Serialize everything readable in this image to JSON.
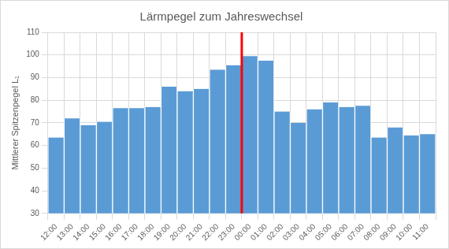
{
  "chart_data": {
    "type": "bar",
    "title": "Lärmpegel zum Jahreswechsel",
    "y_label": "Mittlerer Spitzenpegel L₁",
    "categories": [
      "12:00",
      "13:00",
      "14:00",
      "15:00",
      "16:00",
      "17:00",
      "18:00",
      "19:00",
      "20:00",
      "21:00",
      "22:00",
      "23:00",
      "00:00",
      "01:00",
      "02:00",
      "03:00",
      "04:00",
      "05:00",
      "06:00",
      "07:00",
      "08:00",
      "09:00",
      "10:00",
      "11:00"
    ],
    "values": [
      63.5,
      72,
      69,
      70.5,
      76.5,
      76.5,
      77,
      86,
      84,
      85,
      93.5,
      95.5,
      99.5,
      97.5,
      75,
      70,
      76,
      79,
      77,
      77.5,
      63.5,
      68,
      64.5,
      65
    ],
    "color": "#5b9bd5",
    "ylim": [
      30,
      110
    ],
    "yticks": [
      30,
      40,
      50,
      60,
      70,
      80,
      90,
      100,
      110
    ],
    "grid": true
  }
}
